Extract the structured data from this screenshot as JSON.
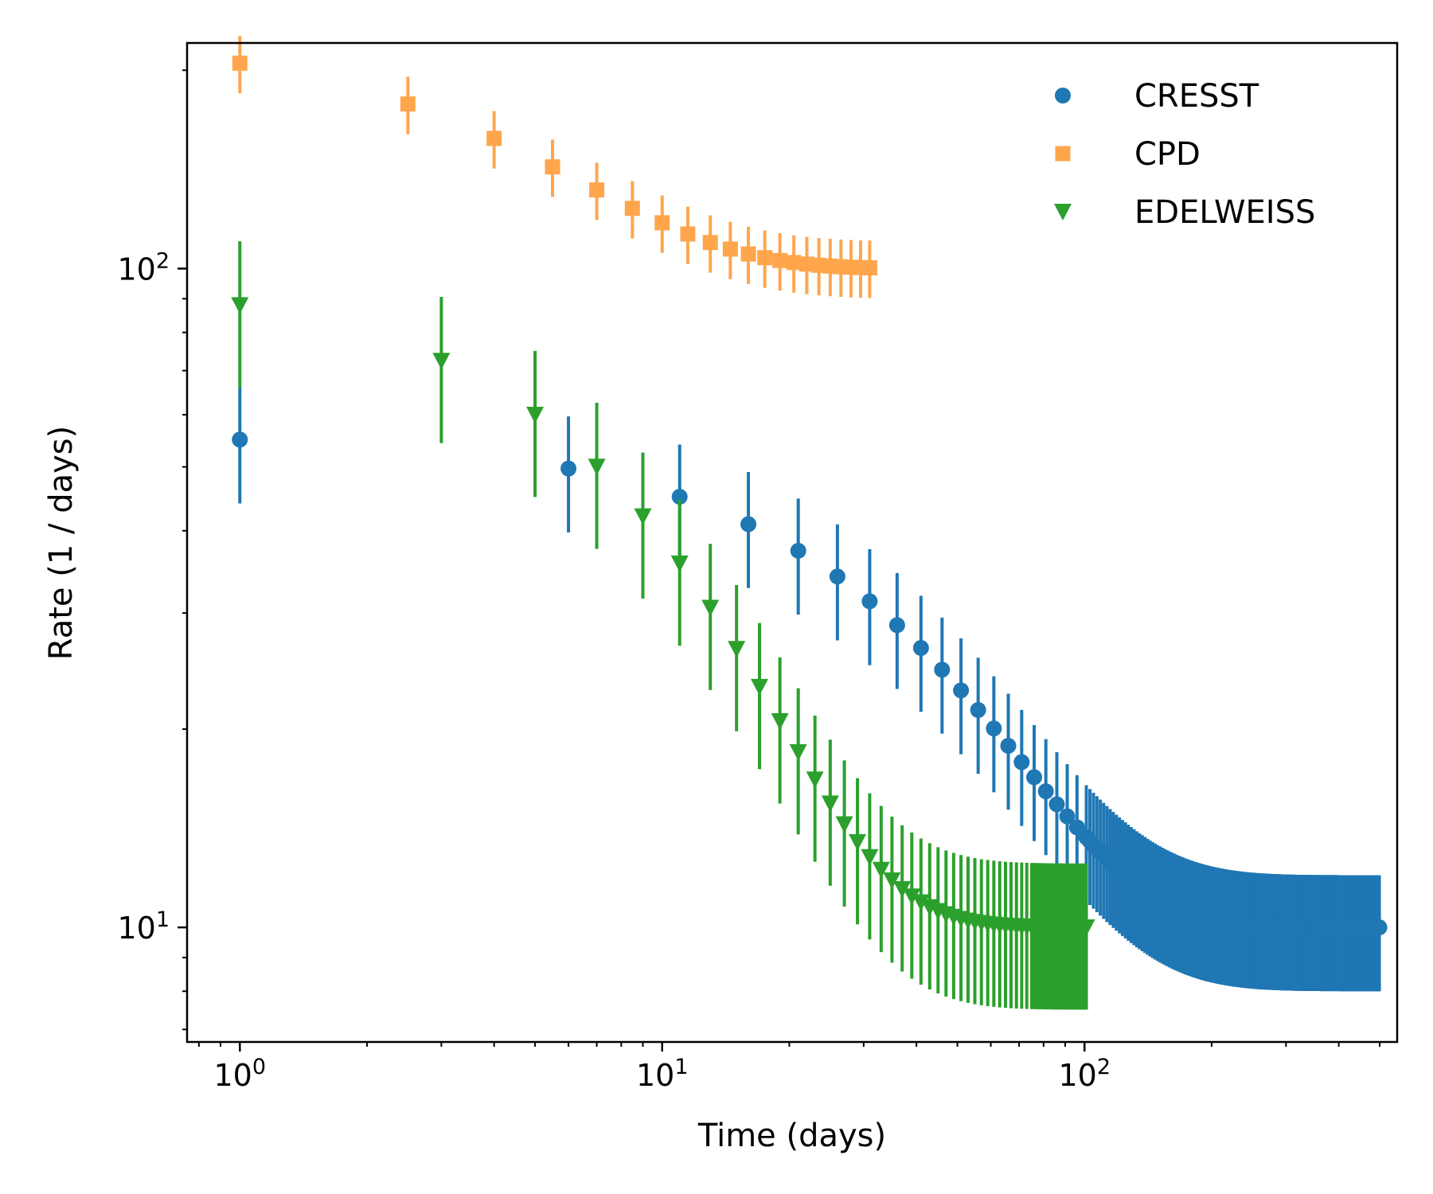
{
  "chart_data": {
    "type": "scatter",
    "title": "",
    "xlabel": "Time (days)",
    "ylabel": "Rate (1 / days)",
    "xscale": "log",
    "yscale": "log",
    "xlim": [
      0.75,
      550
    ],
    "ylim": [
      6.7,
      220
    ],
    "grid": false,
    "legend_position": "top-right",
    "x_ticks": [
      {
        "base": "10",
        "exp": "0",
        "value": 1
      },
      {
        "base": "10",
        "exp": "1",
        "value": 10
      },
      {
        "base": "10",
        "exp": "2",
        "value": 100
      }
    ],
    "y_ticks": [
      {
        "base": "10",
        "exp": "1",
        "value": 10
      },
      {
        "base": "10",
        "exp": "2",
        "value": 100
      }
    ],
    "series": [
      {
        "name": "CRESST",
        "marker": "circle",
        "color": "#1f77b4",
        "model": {
          "A": 45,
          "tau": 40,
          "C": 10
        },
        "error_frac": 0.2,
        "explicit_x": [
          1,
          6,
          11,
          16,
          21,
          26,
          31,
          36,
          41,
          46,
          51,
          56,
          61,
          66,
          71,
          76,
          81,
          86,
          91,
          96,
          101
        ],
        "dense_start": 101,
        "dense_end": 500,
        "dense_step": 2
      },
      {
        "name": "CPD",
        "marker": "square",
        "color": "#ffa64d",
        "model": {
          "A": 105,
          "tau": 5,
          "C": 100
        },
        "error_frac": 0.1,
        "explicit_x": [
          1,
          2.5,
          4,
          5.5,
          7,
          8.5,
          10,
          11.5,
          13,
          14.5,
          16,
          17.5,
          19,
          20.5,
          22,
          23.5,
          25,
          26.5,
          28,
          29.5,
          31
        ],
        "dense_start": 0,
        "dense_end": 0,
        "dense_step": 0
      },
      {
        "name": "EDELWEISS",
        "marker": "triangle-down",
        "color": "#2ca02c",
        "model": {
          "A": 78,
          "tau": 9,
          "C": 10
        },
        "error_frac": 0.25,
        "explicit_x": [
          1,
          3,
          5,
          7,
          9,
          11,
          13,
          15,
          17,
          19,
          21,
          23,
          25,
          27,
          29,
          31,
          33,
          35,
          37,
          39,
          41,
          43,
          45,
          47,
          49,
          51,
          53,
          55,
          57,
          59,
          61,
          63,
          65,
          67,
          69,
          71,
          73,
          75
        ],
        "dense_start": 75,
        "dense_end": 101,
        "dense_step": 1
      }
    ]
  }
}
